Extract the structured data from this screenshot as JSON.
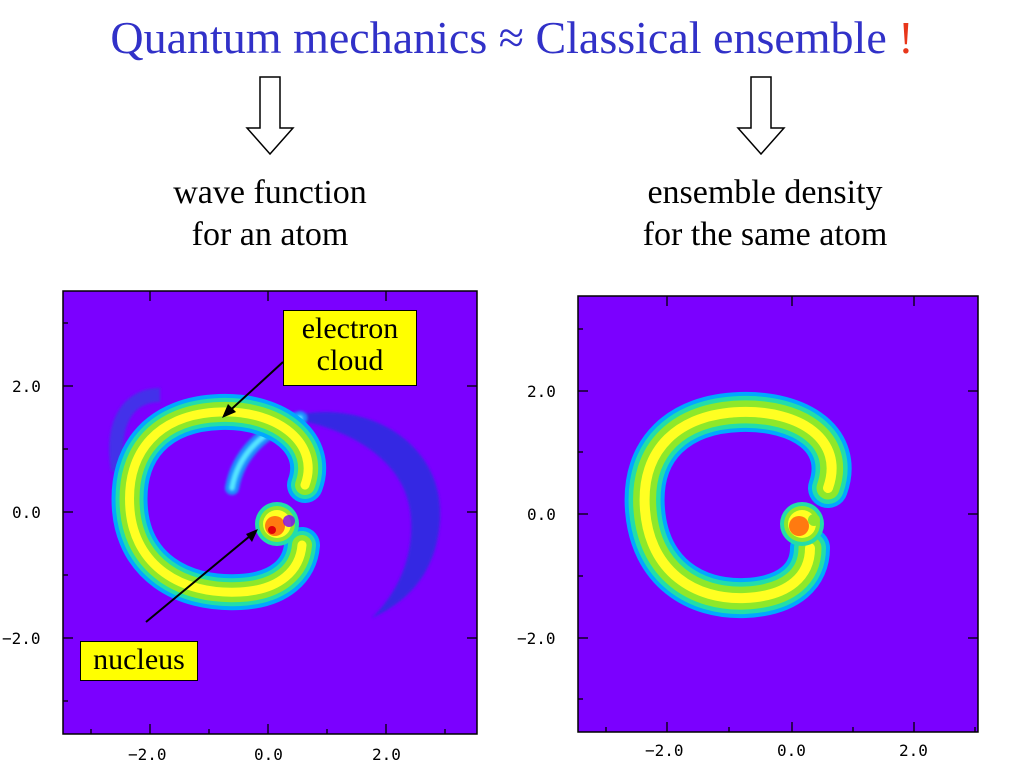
{
  "title": {
    "left": "Quantum mechanics",
    "approx": "≈",
    "right": "Classical ensemble",
    "exclaim": "!"
  },
  "captions": {
    "left_line1": "wave function",
    "left_line2": "for an atom",
    "right_line1": "ensemble density",
    "right_line2": "for the same atom"
  },
  "callouts": {
    "electron_line1": "electron",
    "electron_line2": "cloud",
    "nucleus": "nucleus"
  },
  "panels": {
    "left": {
      "y_ticks": [
        "2.0",
        "0.0",
        "−2.0"
      ],
      "x_ticks": [
        "−2.0",
        "0.0",
        "2.0"
      ]
    },
    "right": {
      "y_ticks": [
        "2.0",
        "0.0",
        "−2.0"
      ],
      "x_ticks": [
        "−2.0",
        "0.0",
        "2.0"
      ]
    }
  },
  "colors": {
    "title": "#3131c8",
    "exclaim": "#e8361a",
    "background": "#7b00ff",
    "callout": "#ffff00"
  }
}
